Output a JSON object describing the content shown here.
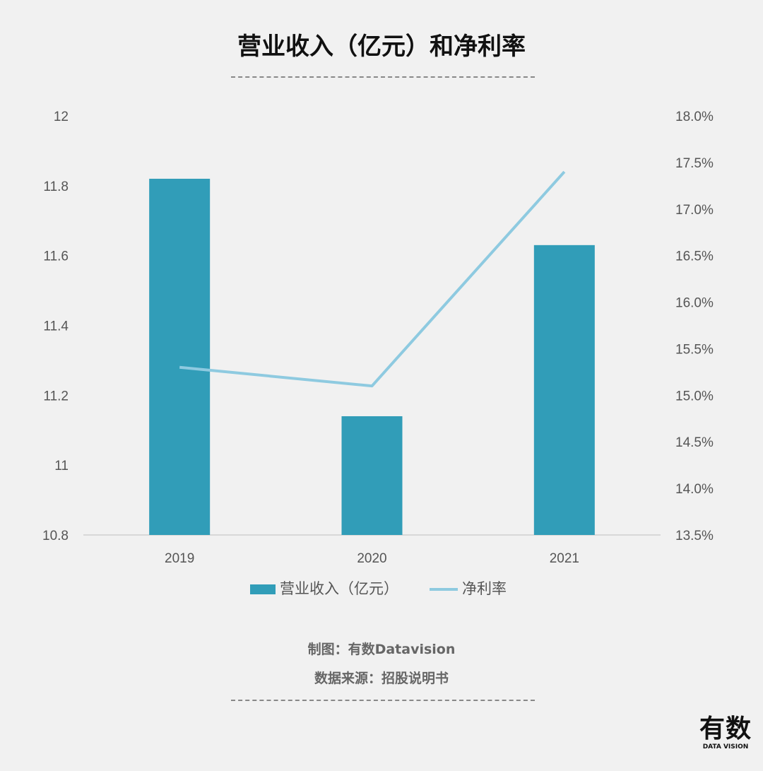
{
  "title": "营业收入（亿元）和净利率",
  "credits": {
    "made_by": "制图：有数Datavision",
    "source": "数据来源：招股说明书"
  },
  "logo": {
    "text": "有数",
    "subtext": "DATA VISION"
  },
  "colors": {
    "bar": "#319db8",
    "line": "#8ecae0",
    "background": "#f1f1f1"
  },
  "chart_data": {
    "type": "bar+line",
    "categories": [
      "2019",
      "2020",
      "2021"
    ],
    "series": [
      {
        "name": "营业收入（亿元）",
        "type": "bar",
        "axis": "left",
        "values": [
          11.82,
          11.14,
          11.63
        ]
      },
      {
        "name": "净利率",
        "type": "line",
        "axis": "right",
        "values": [
          15.3,
          15.1,
          17.4
        ]
      }
    ],
    "left_axis": {
      "ylim": [
        10.8,
        12
      ],
      "ticks": [
        "10.8",
        "11",
        "11.2",
        "11.4",
        "11.6",
        "11.8",
        "12"
      ]
    },
    "right_axis": {
      "ylim": [
        13.5,
        18.0
      ],
      "ticks": [
        "13.5%",
        "14.0%",
        "14.5%",
        "15.0%",
        "15.5%",
        "16.0%",
        "16.5%",
        "17.0%",
        "17.5%",
        "18.0%"
      ]
    },
    "grid": false,
    "legend": "bottom"
  }
}
